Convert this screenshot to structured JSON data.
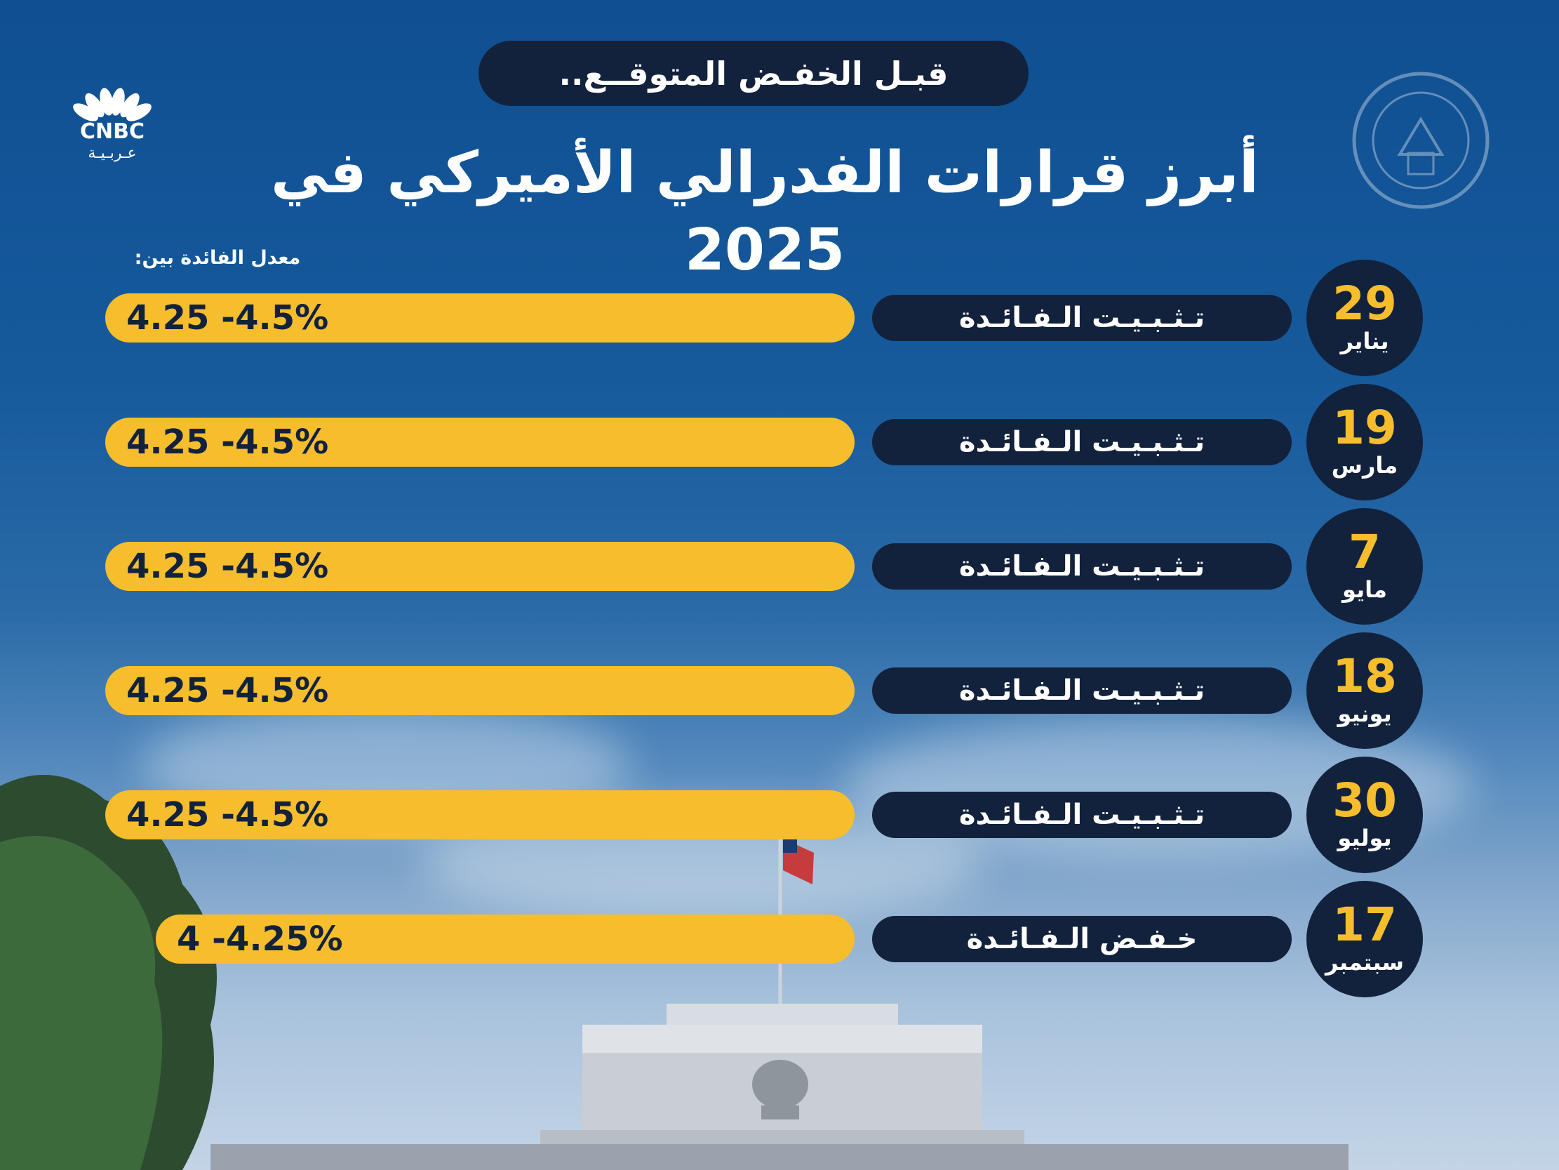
{
  "headline": "قبـل الخفـض المتوقــع..",
  "title": "أبرز قرارات الفدرالي الأميركي في 2025",
  "logo": {
    "name": "CNBC",
    "sub": "عـربـيـة"
  },
  "rate_label": "معدل الفائدة بين:",
  "colors": {
    "background": "#0f4f92",
    "pill": "#13223c",
    "accent": "#f6be2c",
    "text": "#ffffff"
  },
  "decisions": [
    {
      "day": "29",
      "month": "يناير",
      "decision": "تـثـبـيـت الـفـائـدة",
      "rate": "4.25 -4.5%",
      "low": 4.25,
      "high": 4.5
    },
    {
      "day": "19",
      "month": "مارس",
      "decision": "تـثـبـيـت الـفـائـدة",
      "rate": "4.25 -4.5%",
      "low": 4.25,
      "high": 4.5
    },
    {
      "day": "7",
      "month": "مايو",
      "decision": "تـثـبـيـت الـفـائـدة",
      "rate": "4.25 -4.5%",
      "low": 4.25,
      "high": 4.5
    },
    {
      "day": "18",
      "month": "يونيو",
      "decision": "تـثـبـيـت الـفـائـدة",
      "rate": "4.25 -4.5%",
      "low": 4.25,
      "high": 4.5
    },
    {
      "day": "30",
      "month": "يوليو",
      "decision": "تـثـبـيـت الـفـائـدة",
      "rate": "4.25 -4.5%",
      "low": 4.25,
      "high": 4.5
    },
    {
      "day": "17",
      "month": "سبتمبر",
      "decision": "خـفـض الـفـائـدة",
      "rate": "4 -4.25%",
      "low": 4,
      "high": 4.25
    }
  ]
}
